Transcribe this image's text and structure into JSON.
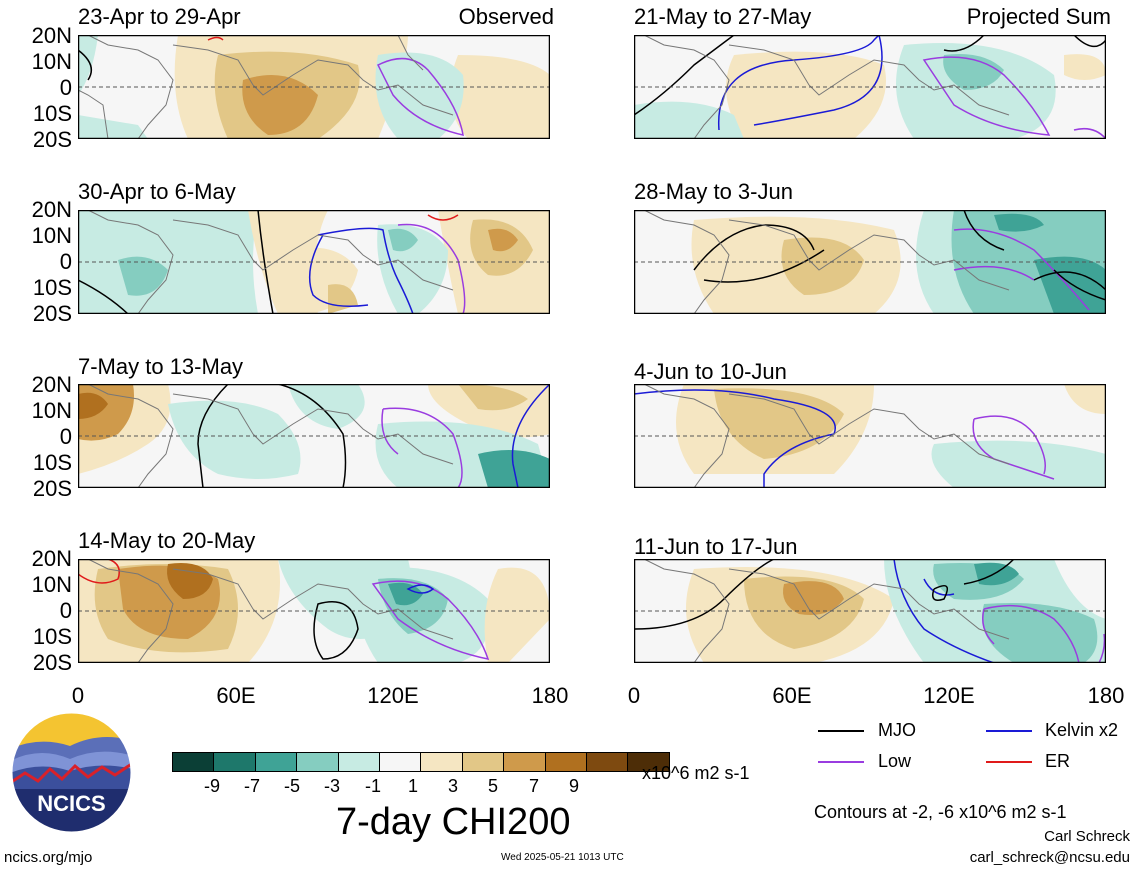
{
  "header": {
    "observed_label": "Observed",
    "projected_label": "Projected Sum"
  },
  "panels": [
    {
      "title": "23-Apr to 29-Apr"
    },
    {
      "title": "30-Apr to 6-May"
    },
    {
      "title": "7-May to 13-May"
    },
    {
      "title": "14-May to 20-May"
    },
    {
      "title": "21-May to 27-May"
    },
    {
      "title": "28-May to 3-Jun"
    },
    {
      "title": "4-Jun to 10-Jun"
    },
    {
      "title": "11-Jun to 17-Jun"
    }
  ],
  "lat_labels": [
    "20N",
    "10N",
    "0",
    "10S",
    "20S"
  ],
  "lon_labels": [
    "0",
    "60E",
    "120E",
    "180"
  ],
  "colorbar": {
    "colors": [
      "#0b3f36",
      "#1e786b",
      "#3fa396",
      "#85cdc0",
      "#c7ebe3",
      "#f6f6f6",
      "#f5e6c2",
      "#e2c787",
      "#cf9a4b",
      "#b0701f",
      "#7e4a10",
      "#4d2d07"
    ],
    "tick_labels": [
      "-9",
      "-7",
      "-5",
      "-3",
      "-1",
      "1",
      "3",
      "5",
      "7",
      "9"
    ],
    "units": "x10^6 m2 s-1"
  },
  "variable_title": "7-day CHI200",
  "legend": {
    "mjo": {
      "label": "MJO",
      "color": "#000000"
    },
    "kelvin": {
      "label": "Kelvin x2",
      "color": "#1a1ad6"
    },
    "low": {
      "label": "Low",
      "color": "#9a3ce0"
    },
    "er": {
      "label": "ER",
      "color": "#e01a1a"
    }
  },
  "contour_note": "Contours at -2, -6 x10^6 m2 s-1",
  "author": "Carl Schreck",
  "email": "carl_schreck@ncsu.edu",
  "logo_text": "NCICS",
  "url": "ncics.org/mjo",
  "timestamp": "Wed 2025-05-21 1013 UTC"
}
